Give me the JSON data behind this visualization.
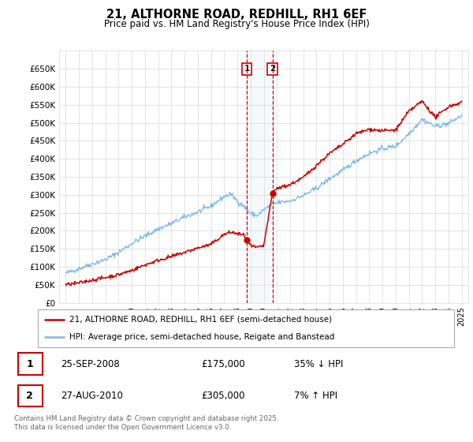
{
  "title": "21, ALTHORNE ROAD, REDHILL, RH1 6EF",
  "subtitle": "Price paid vs. HM Land Registry's House Price Index (HPI)",
  "legend_line1": "21, ALTHORNE ROAD, REDHILL, RH1 6EF (semi-detached house)",
  "legend_line2": "HPI: Average price, semi-detached house, Reigate and Banstead",
  "transaction1_label": "1",
  "transaction1_date": "25-SEP-2008",
  "transaction1_price": "£175,000",
  "transaction1_hpi": "35% ↓ HPI",
  "transaction2_label": "2",
  "transaction2_date": "27-AUG-2010",
  "transaction2_price": "£305,000",
  "transaction2_hpi": "7% ↑ HPI",
  "footer": "Contains HM Land Registry data © Crown copyright and database right 2025.\nThis data is licensed under the Open Government Licence v3.0.",
  "hpi_color": "#7ab8e8",
  "price_color": "#cc0000",
  "transaction1_x": 2008.73,
  "transaction2_x": 2010.66,
  "ylim": [
    0,
    700000
  ],
  "xlim": [
    1994.5,
    2025.5
  ],
  "yticks": [
    0,
    50000,
    100000,
    150000,
    200000,
    250000,
    300000,
    350000,
    400000,
    450000,
    500000,
    550000,
    600000,
    650000
  ],
  "ytick_labels": [
    "£0",
    "£50K",
    "£100K",
    "£150K",
    "£200K",
    "£250K",
    "£300K",
    "£350K",
    "£400K",
    "£450K",
    "£500K",
    "£550K",
    "£600K",
    "£650K"
  ],
  "xticks": [
    1995,
    1996,
    1997,
    1998,
    1999,
    2000,
    2001,
    2002,
    2003,
    2004,
    2005,
    2006,
    2007,
    2008,
    2009,
    2010,
    2011,
    2012,
    2013,
    2014,
    2015,
    2016,
    2017,
    2018,
    2019,
    2020,
    2021,
    2022,
    2023,
    2024,
    2025
  ],
  "hpi_anchors_x": [
    1995,
    1996,
    1997,
    1998,
    1999,
    2000,
    2001,
    2002,
    2003,
    2004,
    2005,
    2006,
    2007,
    2007.5,
    2008,
    2008.5,
    2009,
    2009.5,
    2010,
    2010.5,
    2011,
    2012,
    2013,
    2014,
    2015,
    2016,
    2017,
    2018,
    2019,
    2020,
    2021,
    2022,
    2023,
    2024,
    2025
  ],
  "hpi_anchors_y": [
    82000,
    95000,
    108000,
    120000,
    140000,
    165000,
    185000,
    205000,
    220000,
    238000,
    252000,
    268000,
    295000,
    302000,
    283000,
    268000,
    248000,
    242000,
    258000,
    270000,
    278000,
    283000,
    298000,
    318000,
    345000,
    368000,
    395000,
    415000,
    428000,
    435000,
    470000,
    510000,
    490000,
    498000,
    520000
  ],
  "price_anchors_x": [
    1995,
    1996,
    1997,
    1998,
    1999,
    2000,
    2001,
    2002,
    2003,
    2004,
    2005,
    2006,
    2007,
    2007.5,
    2008,
    2008.5,
    2008.73,
    2009,
    2009.5,
    2010,
    2010.66,
    2011,
    2012,
    2013,
    2014,
    2015,
    2016,
    2017,
    2018,
    2019,
    2020,
    2021,
    2022,
    2023,
    2024,
    2025
  ],
  "price_anchors_y": [
    50000,
    55000,
    63000,
    70000,
    78000,
    90000,
    105000,
    118000,
    128000,
    140000,
    152000,
    162000,
    190000,
    196000,
    192000,
    188000,
    175000,
    158000,
    153000,
    158000,
    305000,
    318000,
    328000,
    348000,
    382000,
    415000,
    440000,
    470000,
    482000,
    478000,
    480000,
    532000,
    560000,
    515000,
    545000,
    557000
  ]
}
